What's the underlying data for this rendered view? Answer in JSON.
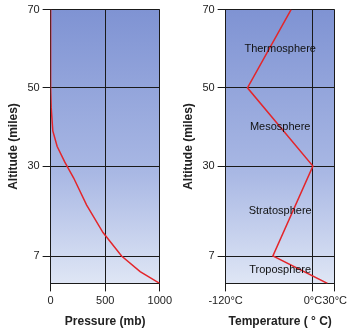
{
  "chart_data": [
    {
      "type": "line",
      "x": [
        1000,
        820,
        650,
        480,
        330,
        210,
        130,
        60,
        20,
        5,
        0,
        0
      ],
      "values": [
        0,
        3,
        7,
        13,
        20,
        27,
        31,
        35,
        39,
        45,
        50,
        70
      ],
      "x_label": "Pressure (mb)",
      "y_label": "Altitude (miles)",
      "xlim": [
        0,
        1000
      ],
      "xticks": [
        0,
        500,
        1000
      ],
      "ylim": [
        0,
        70
      ],
      "yticks": [
        7,
        30,
        50,
        70
      ],
      "color": "#e3262b",
      "grid": true
    },
    {
      "type": "line",
      "x": [
        20,
        -55,
        0,
        -90,
        -30
      ],
      "values": [
        0,
        7,
        30,
        50,
        70
      ],
      "x_label": "Temperature ( ° C)",
      "y_label": "Altitude (miles)",
      "xlim": [
        -120,
        30
      ],
      "xticks": [
        {
          "value": -120,
          "label": "-120°C"
        },
        {
          "value": 0,
          "label": "0°C"
        },
        {
          "value": 30,
          "label": "30°C"
        }
      ],
      "ylim": [
        0,
        70
      ],
      "yticks": [
        7,
        30,
        50,
        70
      ],
      "layers": [
        {
          "name": "Troposphere",
          "bottom": 0,
          "top": 7
        },
        {
          "name": "Stratosphere",
          "bottom": 7,
          "top": 30
        },
        {
          "name": "Mesosphere",
          "bottom": 30,
          "top": 50
        },
        {
          "name": "Thermosphere",
          "bottom": 50,
          "top": 70
        }
      ],
      "color": "#e3262b",
      "grid": true
    }
  ]
}
